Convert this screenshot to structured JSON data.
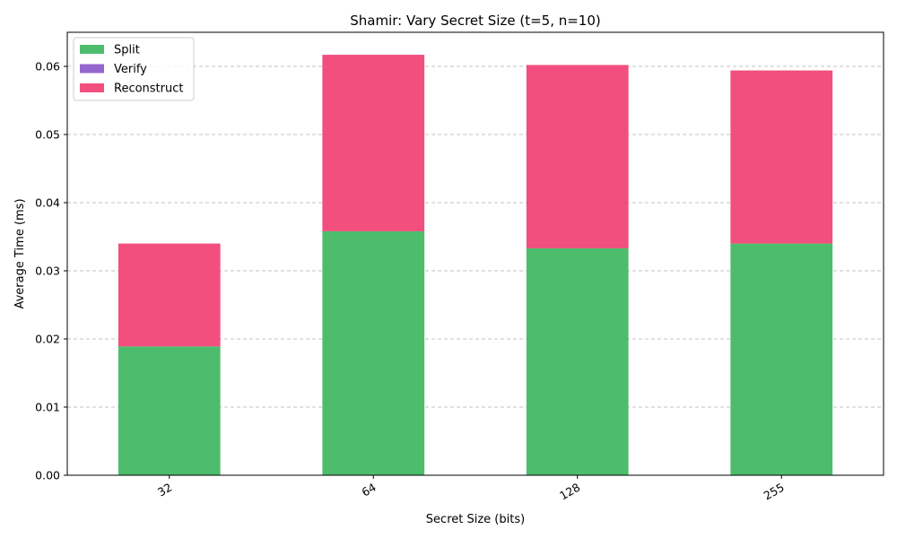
{
  "chart_data": {
    "type": "bar",
    "stacked": true,
    "title": "Shamir: Vary Secret Size (t=5, n=10)",
    "xlabel": "Secret Size (bits)",
    "ylabel": "Average Time (ms)",
    "categories": [
      "32",
      "64",
      "128",
      "255"
    ],
    "ylim": [
      0,
      0.065
    ],
    "yticks": [
      "0.00",
      "0.01",
      "0.02",
      "0.03",
      "0.04",
      "0.05",
      "0.06"
    ],
    "grid": "y-dashed",
    "legend_position": "top-left",
    "series": [
      {
        "name": "Split",
        "color": "#4dbd6d",
        "values": [
          0.0189,
          0.0358,
          0.0333,
          0.034
        ]
      },
      {
        "name": "Verify",
        "color": "#9467cf",
        "values": [
          0,
          0,
          0,
          0
        ]
      },
      {
        "name": "Reconstruct",
        "color": "#f24f7e",
        "values": [
          0.0151,
          0.0259,
          0.0269,
          0.0254
        ]
      }
    ]
  }
}
